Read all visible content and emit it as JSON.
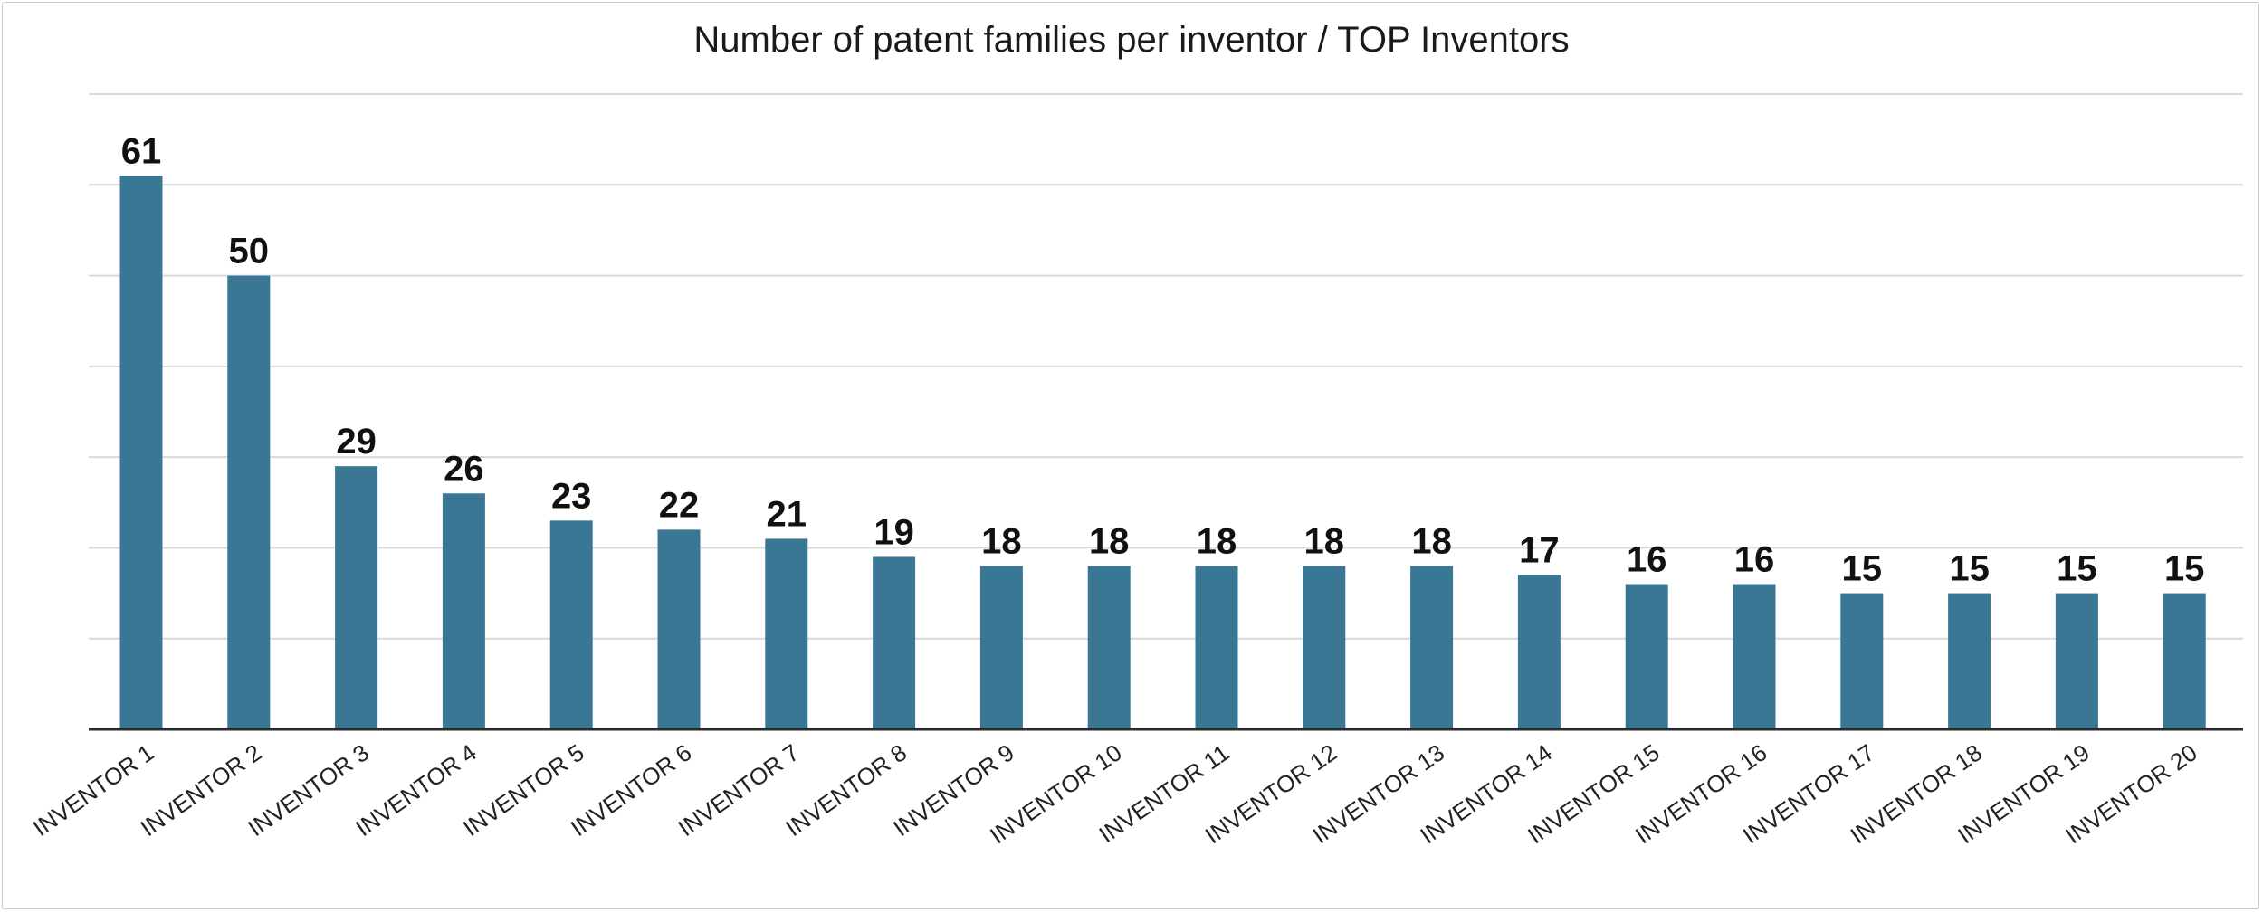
{
  "chart_data": {
    "type": "bar",
    "title": "Number of patent families per inventor / TOP Inventors",
    "xlabel": "",
    "ylabel": "",
    "categories": [
      "INVENTOR 1",
      "INVENTOR 2",
      "INVENTOR 3",
      "INVENTOR 4",
      "INVENTOR 5",
      "INVENTOR 6",
      "INVENTOR 7",
      "INVENTOR 8",
      "INVENTOR 9",
      "INVENTOR 10",
      "INVENTOR 11",
      "INVENTOR 12",
      "INVENTOR 13",
      "INVENTOR 14",
      "INVENTOR 15",
      "INVENTOR 16",
      "INVENTOR 17",
      "INVENTOR 18",
      "INVENTOR 19",
      "INVENTOR 20"
    ],
    "values": [
      61,
      50,
      29,
      26,
      23,
      22,
      21,
      19,
      18,
      18,
      18,
      18,
      18,
      17,
      16,
      16,
      15,
      15,
      15,
      15
    ],
    "ylim": [
      0,
      70
    ],
    "y_gridlines": [
      10,
      20,
      30,
      40,
      50,
      60,
      70
    ],
    "grid": true,
    "legend": "none",
    "colors": {
      "bar": "#3a7795",
      "grid": "#d9d9d9",
      "axis": "#2b2b2b"
    }
  }
}
